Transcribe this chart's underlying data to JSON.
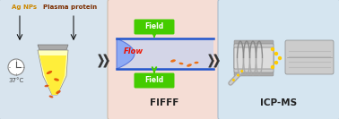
{
  "bg_color": "#f0f0f0",
  "panel1_bg": "#d8e4ee",
  "panel2_bg": "#f5ddd5",
  "panel3_bg": "#d5e5f0",
  "panel1_label": "FIFFF",
  "panel3_label": "ICP-MS",
  "ag_nps_label": "Ag NPs",
  "plasma_label": "Plasma protein",
  "temp_label": "37°C",
  "field_label": "Field",
  "flow_label": "Flow",
  "ag_text_color": "#cc8800",
  "plasma_text_color": "#7b2d00",
  "green_arrow": "#44cc00",
  "blue_line": "#2255cc",
  "flow_text_color": "#ee1100",
  "chevron_color": "#333333",
  "dot_color": "#ffcc00"
}
